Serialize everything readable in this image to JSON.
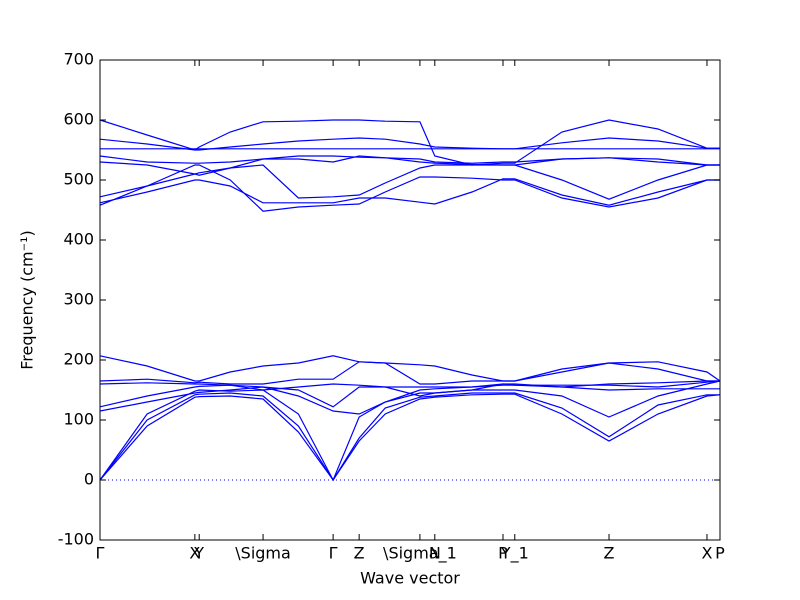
{
  "chart_data": {
    "type": "line",
    "xlabel": "Wave vector",
    "ylabel": "Frequency (cm⁻¹)",
    "xlim": [
      0,
      1
    ],
    "ylim": [
      -100,
      700
    ],
    "yticks": [
      -100,
      0,
      100,
      200,
      300,
      400,
      500,
      600,
      700
    ],
    "xticks": [
      {
        "value": 0,
        "label": "Γ"
      },
      {
        "value": 0.153,
        "label": "X"
      },
      {
        "value": 0.16,
        "label": "Y"
      },
      {
        "value": 0.263,
        "label": "\\Sigma"
      },
      {
        "value": 0.376,
        "label": "Γ"
      },
      {
        "value": 0.418,
        "label": "Z"
      },
      {
        "value": 0.516,
        "label": "\\Sigma_1"
      },
      {
        "value": 0.54,
        "label": "N"
      },
      {
        "value": 0.65,
        "label": "P"
      },
      {
        "value": 0.669,
        "label": "Y_1"
      },
      {
        "value": 0.821,
        "label": "Z"
      },
      {
        "value": 0.979,
        "label": "X"
      },
      {
        "value": 1.0,
        "label": "P"
      }
    ],
    "reference_line": 0,
    "reference_color": "#0000ff",
    "x": [
      0,
      0.076,
      0.153,
      0.16,
      0.21,
      0.263,
      0.32,
      0.376,
      0.418,
      0.46,
      0.516,
      0.54,
      0.6,
      0.65,
      0.669,
      0.745,
      0.821,
      0.9,
      0.979,
      1.0
    ],
    "series": [
      {
        "color": "#0000ff",
        "values": [
          0,
          90,
          138,
          139,
          140,
          135,
          80,
          0,
          65,
          110,
          135,
          138,
          142,
          143,
          143,
          110,
          65,
          110,
          140,
          142
        ]
      },
      {
        "color": "#0000ff",
        "values": [
          0,
          100,
          142,
          143,
          145,
          140,
          90,
          0,
          70,
          120,
          138,
          140,
          145,
          145,
          145,
          120,
          72,
          125,
          142,
          142
        ]
      },
      {
        "color": "#0000ff",
        "values": [
          0,
          110,
          148,
          150,
          148,
          150,
          110,
          0,
          105,
          130,
          145,
          145,
          150,
          150,
          150,
          140,
          105,
          140,
          160,
          165
        ]
      },
      {
        "color": "#0000ff",
        "values": [
          115,
          130,
          145,
          146,
          150,
          155,
          140,
          115,
          110,
          130,
          150,
          152,
          155,
          160,
          158,
          155,
          150,
          152,
          152,
          152
        ]
      },
      {
        "color": "#0000ff",
        "values": [
          122,
          140,
          155,
          156,
          158,
          155,
          150,
          122,
          155,
          155,
          155,
          155,
          155,
          158,
          158,
          158,
          158,
          155,
          163,
          165
        ]
      },
      {
        "color": "#0000ff",
        "values": [
          160,
          162,
          160,
          160,
          158,
          150,
          155,
          160,
          158,
          155,
          140,
          145,
          150,
          160,
          160,
          155,
          160,
          162,
          165,
          165
        ]
      },
      {
        "color": "#0000ff",
        "values": [
          165,
          168,
          162,
          163,
          160,
          160,
          168,
          168,
          197,
          195,
          192,
          190,
          175,
          165,
          165,
          180,
          195,
          185,
          165,
          165
        ]
      },
      {
        "color": "#0000ff",
        "values": [
          207,
          190,
          165,
          165,
          180,
          190,
          195,
          207,
          197,
          195,
          160,
          160,
          165,
          165,
          165,
          185,
          195,
          197,
          180,
          165
        ]
      },
      {
        "color": "#0000ff",
        "values": [
          458,
          490,
          525,
          525,
          500,
          448,
          455,
          458,
          460,
          480,
          505,
          505,
          503,
          500,
          500,
          470,
          455,
          470,
          500,
          500
        ]
      },
      {
        "color": "#0000ff",
        "values": [
          462,
          480,
          500,
          500,
          490,
          462,
          462,
          462,
          470,
          470,
          463,
          460,
          480,
          502,
          502,
          475,
          458,
          480,
          500,
          500
        ]
      },
      {
        "color": "#0000ff",
        "values": [
          472,
          490,
          510,
          512,
          520,
          525,
          470,
          472,
          475,
          495,
          520,
          525,
          525,
          525,
          525,
          500,
          468,
          500,
          525,
          525
        ]
      },
      {
        "color": "#0000ff",
        "values": [
          530,
          525,
          510,
          508,
          520,
          535,
          535,
          530,
          540,
          537,
          530,
          528,
          526,
          525,
          525,
          535,
          537,
          535,
          525,
          525
        ]
      },
      {
        "color": "#0000ff",
        "values": [
          540,
          530,
          528,
          528,
          530,
          535,
          540,
          540,
          538,
          537,
          535,
          530,
          528,
          530,
          530,
          535,
          537,
          530,
          525,
          525
        ]
      },
      {
        "color": "#0000ff",
        "values": [
          552,
          552,
          552,
          552,
          552,
          552,
          552,
          552,
          552,
          552,
          552,
          552,
          552,
          552,
          552,
          552,
          552,
          552,
          552,
          552
        ]
      },
      {
        "color": "#0000ff",
        "values": [
          568,
          560,
          550,
          550,
          555,
          560,
          565,
          568,
          570,
          568,
          560,
          555,
          553,
          552,
          552,
          562,
          570,
          565,
          553,
          553
        ]
      },
      {
        "color": "#0000ff",
        "values": [
          600,
          575,
          550,
          555,
          580,
          597,
          598,
          600,
          600,
          598,
          597,
          540,
          525,
          528,
          528,
          580,
          600,
          585,
          553,
          553
        ]
      }
    ]
  }
}
